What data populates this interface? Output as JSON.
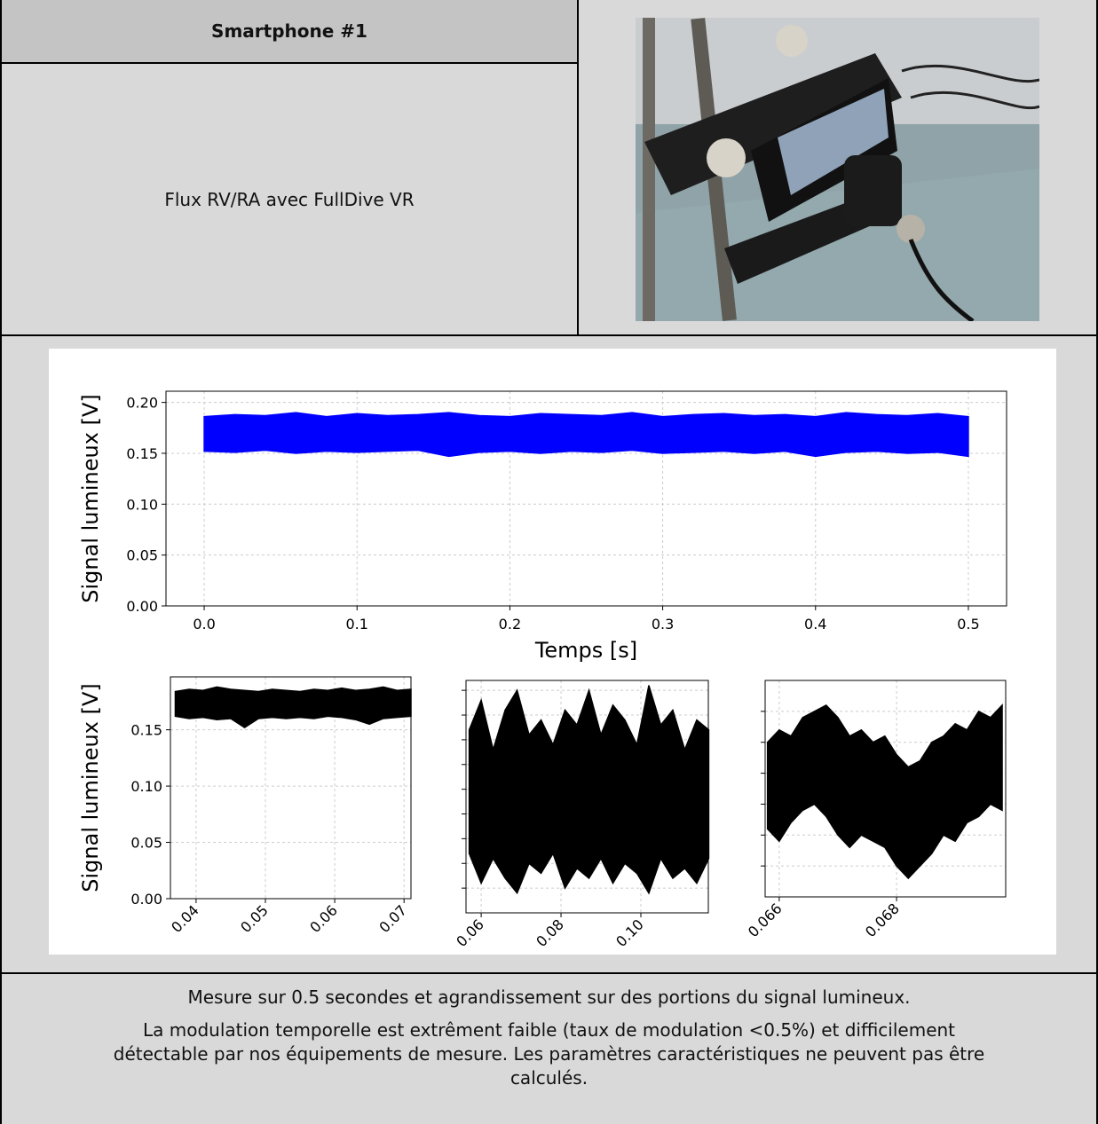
{
  "header": {
    "title": "Smartphone #1",
    "description": "Flux RV/RA avec FullDive VR"
  },
  "chart_data": [
    {
      "type": "band",
      "ylabel": "Signal lumineux [V]",
      "xlabel": "Temps [s]",
      "color": "#0000ff",
      "grid": true,
      "x": [
        0,
        0.02,
        0.04,
        0.06,
        0.08,
        0.1,
        0.12,
        0.14,
        0.16,
        0.18,
        0.2,
        0.22,
        0.24,
        0.26,
        0.28,
        0.3,
        0.32,
        0.34,
        0.36,
        0.38,
        0.4,
        0.42,
        0.44,
        0.46,
        0.48,
        0.5
      ],
      "upper": [
        0.186,
        0.188,
        0.187,
        0.19,
        0.186,
        0.189,
        0.187,
        0.188,
        0.19,
        0.187,
        0.186,
        0.189,
        0.188,
        0.187,
        0.19,
        0.186,
        0.188,
        0.189,
        0.187,
        0.188,
        0.186,
        0.19,
        0.188,
        0.187,
        0.189,
        0.186
      ],
      "lower": [
        0.152,
        0.151,
        0.153,
        0.15,
        0.152,
        0.151,
        0.152,
        0.153,
        0.147,
        0.151,
        0.152,
        0.15,
        0.152,
        0.151,
        0.153,
        0.15,
        0.151,
        0.152,
        0.15,
        0.152,
        0.147,
        0.151,
        0.152,
        0.15,
        0.151,
        0.147
      ],
      "xlim": [
        -0.025,
        0.525
      ],
      "ylim": [
        0,
        0.211
      ],
      "xticks": [
        {
          "value": 0,
          "label": "0.0"
        },
        0.1,
        0.2,
        0.3,
        0.4,
        0.5
      ],
      "yticks": [
        {
          "value": 0,
          "label": "0.00"
        },
        0.05,
        {
          "value": 0.1,
          "label": "0.10"
        },
        0.15,
        {
          "value": 0.2,
          "label": "0.20"
        }
      ]
    },
    {
      "type": "band",
      "ylabel": "Signal lumineux [V]",
      "color": "#000000",
      "grid": true,
      "x": [
        0.037,
        0.039,
        0.041,
        0.043,
        0.045,
        0.047,
        0.049,
        0.051,
        0.053,
        0.055,
        0.057,
        0.059,
        0.061,
        0.063,
        0.065,
        0.067,
        0.069,
        0.071
      ],
      "upper": [
        0.184,
        0.186,
        0.185,
        0.188,
        0.186,
        0.185,
        0.184,
        0.186,
        0.185,
        0.184,
        0.186,
        0.185,
        0.187,
        0.185,
        0.186,
        0.188,
        0.185,
        0.186
      ],
      "lower": [
        0.162,
        0.16,
        0.161,
        0.159,
        0.16,
        0.152,
        0.16,
        0.161,
        0.16,
        0.161,
        0.16,
        0.162,
        0.161,
        0.159,
        0.155,
        0.16,
        0.161,
        0.162
      ],
      "xlim": [
        0.0363,
        0.071
      ],
      "ylim": [
        0,
        0.197
      ],
      "xticks": [
        0.04,
        0.05,
        0.06,
        0.07
      ],
      "yticks": [
        {
          "value": 0,
          "label": "0.00"
        },
        0.05,
        {
          "value": 0.1,
          "label": "0.10"
        },
        0.15
      ]
    },
    {
      "type": "band",
      "color": "#000000",
      "grid": true,
      "x": [
        0.057,
        0.06,
        0.063,
        0.066,
        0.069,
        0.072,
        0.075,
        0.078,
        0.081,
        0.084,
        0.087,
        0.09,
        0.093,
        0.096,
        0.099,
        0.102,
        0.105,
        0.108,
        0.111,
        0.114,
        0.117
      ],
      "upper": [
        0.182,
        0.188,
        0.178,
        0.186,
        0.19,
        0.181,
        0.184,
        0.179,
        0.186,
        0.183,
        0.19,
        0.181,
        0.187,
        0.184,
        0.179,
        0.191,
        0.183,
        0.186,
        0.178,
        0.184,
        0.182
      ],
      "lower": [
        0.157,
        0.151,
        0.156,
        0.152,
        0.149,
        0.155,
        0.153,
        0.157,
        0.15,
        0.154,
        0.152,
        0.156,
        0.151,
        0.155,
        0.153,
        0.149,
        0.156,
        0.152,
        0.154,
        0.151,
        0.156
      ],
      "xlim": [
        0.0562,
        0.1169
      ],
      "ylim": [
        0.145,
        0.192
      ],
      "xticks": [
        0.06,
        0.08,
        {
          "value": 0.1,
          "label": "0.10"
        }
      ],
      "ytick_marks": [
        0.15,
        0.155,
        0.16,
        0.165,
        0.17,
        0.175,
        0.18,
        0.185,
        0.19
      ]
    },
    {
      "type": "band",
      "color": "#000000",
      "grid": true,
      "x": [
        0.0658,
        0.066,
        0.0662,
        0.0664,
        0.0666,
        0.0668,
        0.067,
        0.0672,
        0.0674,
        0.0676,
        0.0678,
        0.068,
        0.0682,
        0.0684,
        0.0686,
        0.0688,
        0.069,
        0.0692,
        0.0694,
        0.0696,
        0.0698
      ],
      "upper": [
        0.18,
        0.182,
        0.181,
        0.184,
        0.185,
        0.186,
        0.184,
        0.181,
        0.182,
        0.18,
        0.181,
        0.178,
        0.176,
        0.177,
        0.18,
        0.181,
        0.183,
        0.182,
        0.185,
        0.184,
        0.186
      ],
      "lower": [
        0.166,
        0.164,
        0.167,
        0.169,
        0.17,
        0.168,
        0.165,
        0.163,
        0.165,
        0.164,
        0.163,
        0.16,
        0.158,
        0.16,
        0.162,
        0.165,
        0.164,
        0.167,
        0.168,
        0.17,
        0.169
      ],
      "xlim": [
        0.06576,
        0.06986
      ],
      "ylim": [
        0.155,
        0.19
      ],
      "xticks": [
        0.066,
        0.068
      ],
      "ytick_marks": [
        0.16,
        0.165,
        0.17,
        0.175,
        0.18,
        0.185
      ]
    }
  ],
  "caption": [
    "Mesure sur 0.5 secondes et agrandissement sur des portions du signal lumineux.",
    "La modulation temporelle est extrêment faible (taux de modulation <0.5%) et difficilement détectable par nos équipements de mesure. Les paramètres caractéristiques ne peuvent pas être calculés."
  ]
}
